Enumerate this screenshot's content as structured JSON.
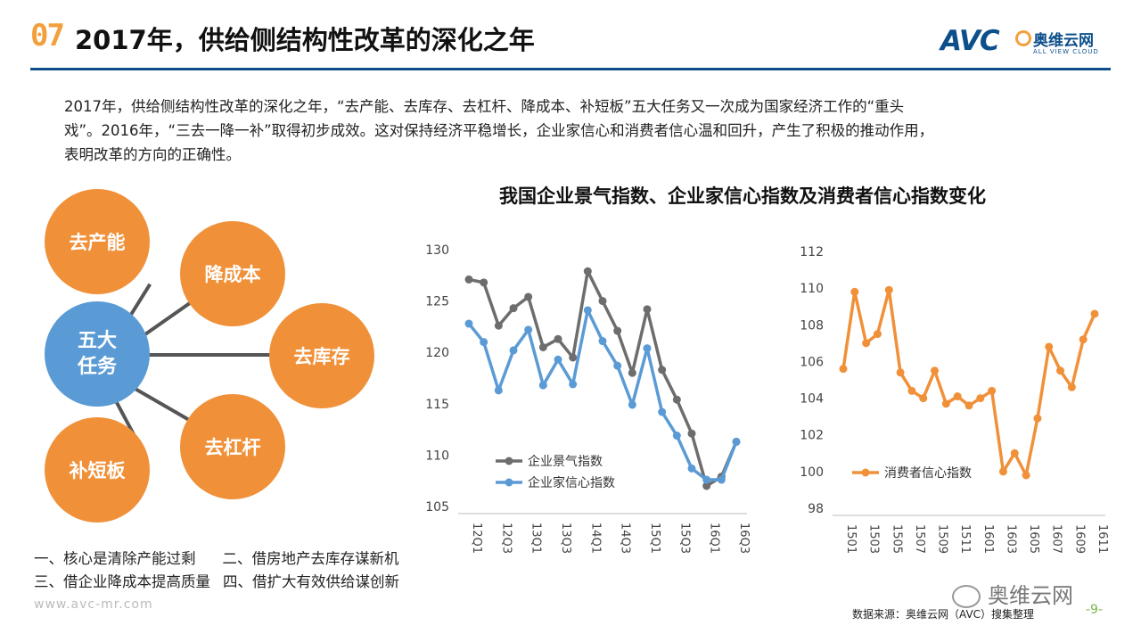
{
  "header": {
    "num": "07",
    "title": "2017年，供给侧结构性改革的深化之年"
  },
  "logo": {
    "brand": "AVC",
    "cn": "奥维云网",
    "en": "ALL VIEW CLOUD"
  },
  "intro": {
    "line1": "2017年，供给侧结构性改革的深化之年，“去产能、去库存、去杠杆、降成本、补短板”五大任务又一次成为国家经济工作的“重头",
    "line2": "戏”。2016年，“三去一降一补”取得初步成效。这对保持经济平稳增长，企业家信心和消费者信心温和回升，产生了积极的推动作用，",
    "line3": "表明改革的方向的正确性。"
  },
  "diagram": {
    "center_line1": "五大",
    "center_line2": "任务",
    "nodes": [
      "去产能",
      "降成本",
      "去库存",
      "去杠杆",
      "补短板"
    ]
  },
  "notes": {
    "n1": "一、核心是清除产能过剩",
    "n2": "二、借房地产去库存谋新机",
    "n3": "三、借企业降成本提高质量",
    "n4": "四、借扩大有效供给谋创新"
  },
  "site": "www.avc-mr.com",
  "chart_heading": "我国企业景气指数、企业家信心指数及消费者信心指数变化",
  "source": "数据来源：奥维云网（AVC）搜集整理",
  "page_number": "-9-",
  "watermark": "奥维云网",
  "colors": {
    "accent": "#f0913a",
    "blue": "#5b9bd5",
    "gray": "#6d6d6d",
    "brand": "#0d4f8b"
  },
  "chart_data": [
    {
      "type": "line",
      "title": "",
      "ylim": [
        105,
        130
      ],
      "yticks": [
        105,
        110,
        115,
        120,
        125,
        130
      ],
      "tick_labels": [
        "12Q1",
        "12Q3",
        "13Q1",
        "13Q3",
        "14Q1",
        "14Q3",
        "15Q1",
        "15Q3",
        "16Q1",
        "16Q3"
      ],
      "x_count": 19,
      "series": [
        {
          "name": "企业景气指数",
          "color": "#6d6d6d",
          "values": [
            127.1,
            126.8,
            122.6,
            124.3,
            125.4,
            120.5,
            121.3,
            119.5,
            127.9,
            125.0,
            122.1,
            118.0,
            124.2,
            118.3,
            115.4,
            112.1,
            107.0,
            107.9,
            111.3
          ]
        },
        {
          "name": "企业家信心指数",
          "color": "#5b9bd5",
          "values": [
            122.8,
            121.0,
            116.3,
            120.2,
            122.2,
            116.8,
            119.3,
            116.9,
            124.1,
            121.1,
            118.7,
            114.9,
            120.4,
            114.2,
            111.9,
            108.7,
            107.6,
            107.6,
            111.3
          ]
        }
      ]
    },
    {
      "type": "line",
      "title": "",
      "ylim": [
        98,
        112
      ],
      "yticks": [
        98,
        100,
        102,
        104,
        106,
        108,
        110,
        112
      ],
      "tick_labels": [
        "1501",
        "1503",
        "1505",
        "1507",
        "1509",
        "1511",
        "1601",
        "1603",
        "1605",
        "1607",
        "1609",
        "1611"
      ],
      "x_count": 23,
      "series": [
        {
          "name": "消费者信心指数",
          "color": "#f0913a",
          "values": [
            105.6,
            109.8,
            107.0,
            107.5,
            109.9,
            105.4,
            104.4,
            104.0,
            105.5,
            103.7,
            104.1,
            103.6,
            104.0,
            104.4,
            100.0,
            101.0,
            99.8,
            102.9,
            106.8,
            105.5,
            104.6,
            107.2,
            108.6
          ]
        }
      ]
    }
  ]
}
